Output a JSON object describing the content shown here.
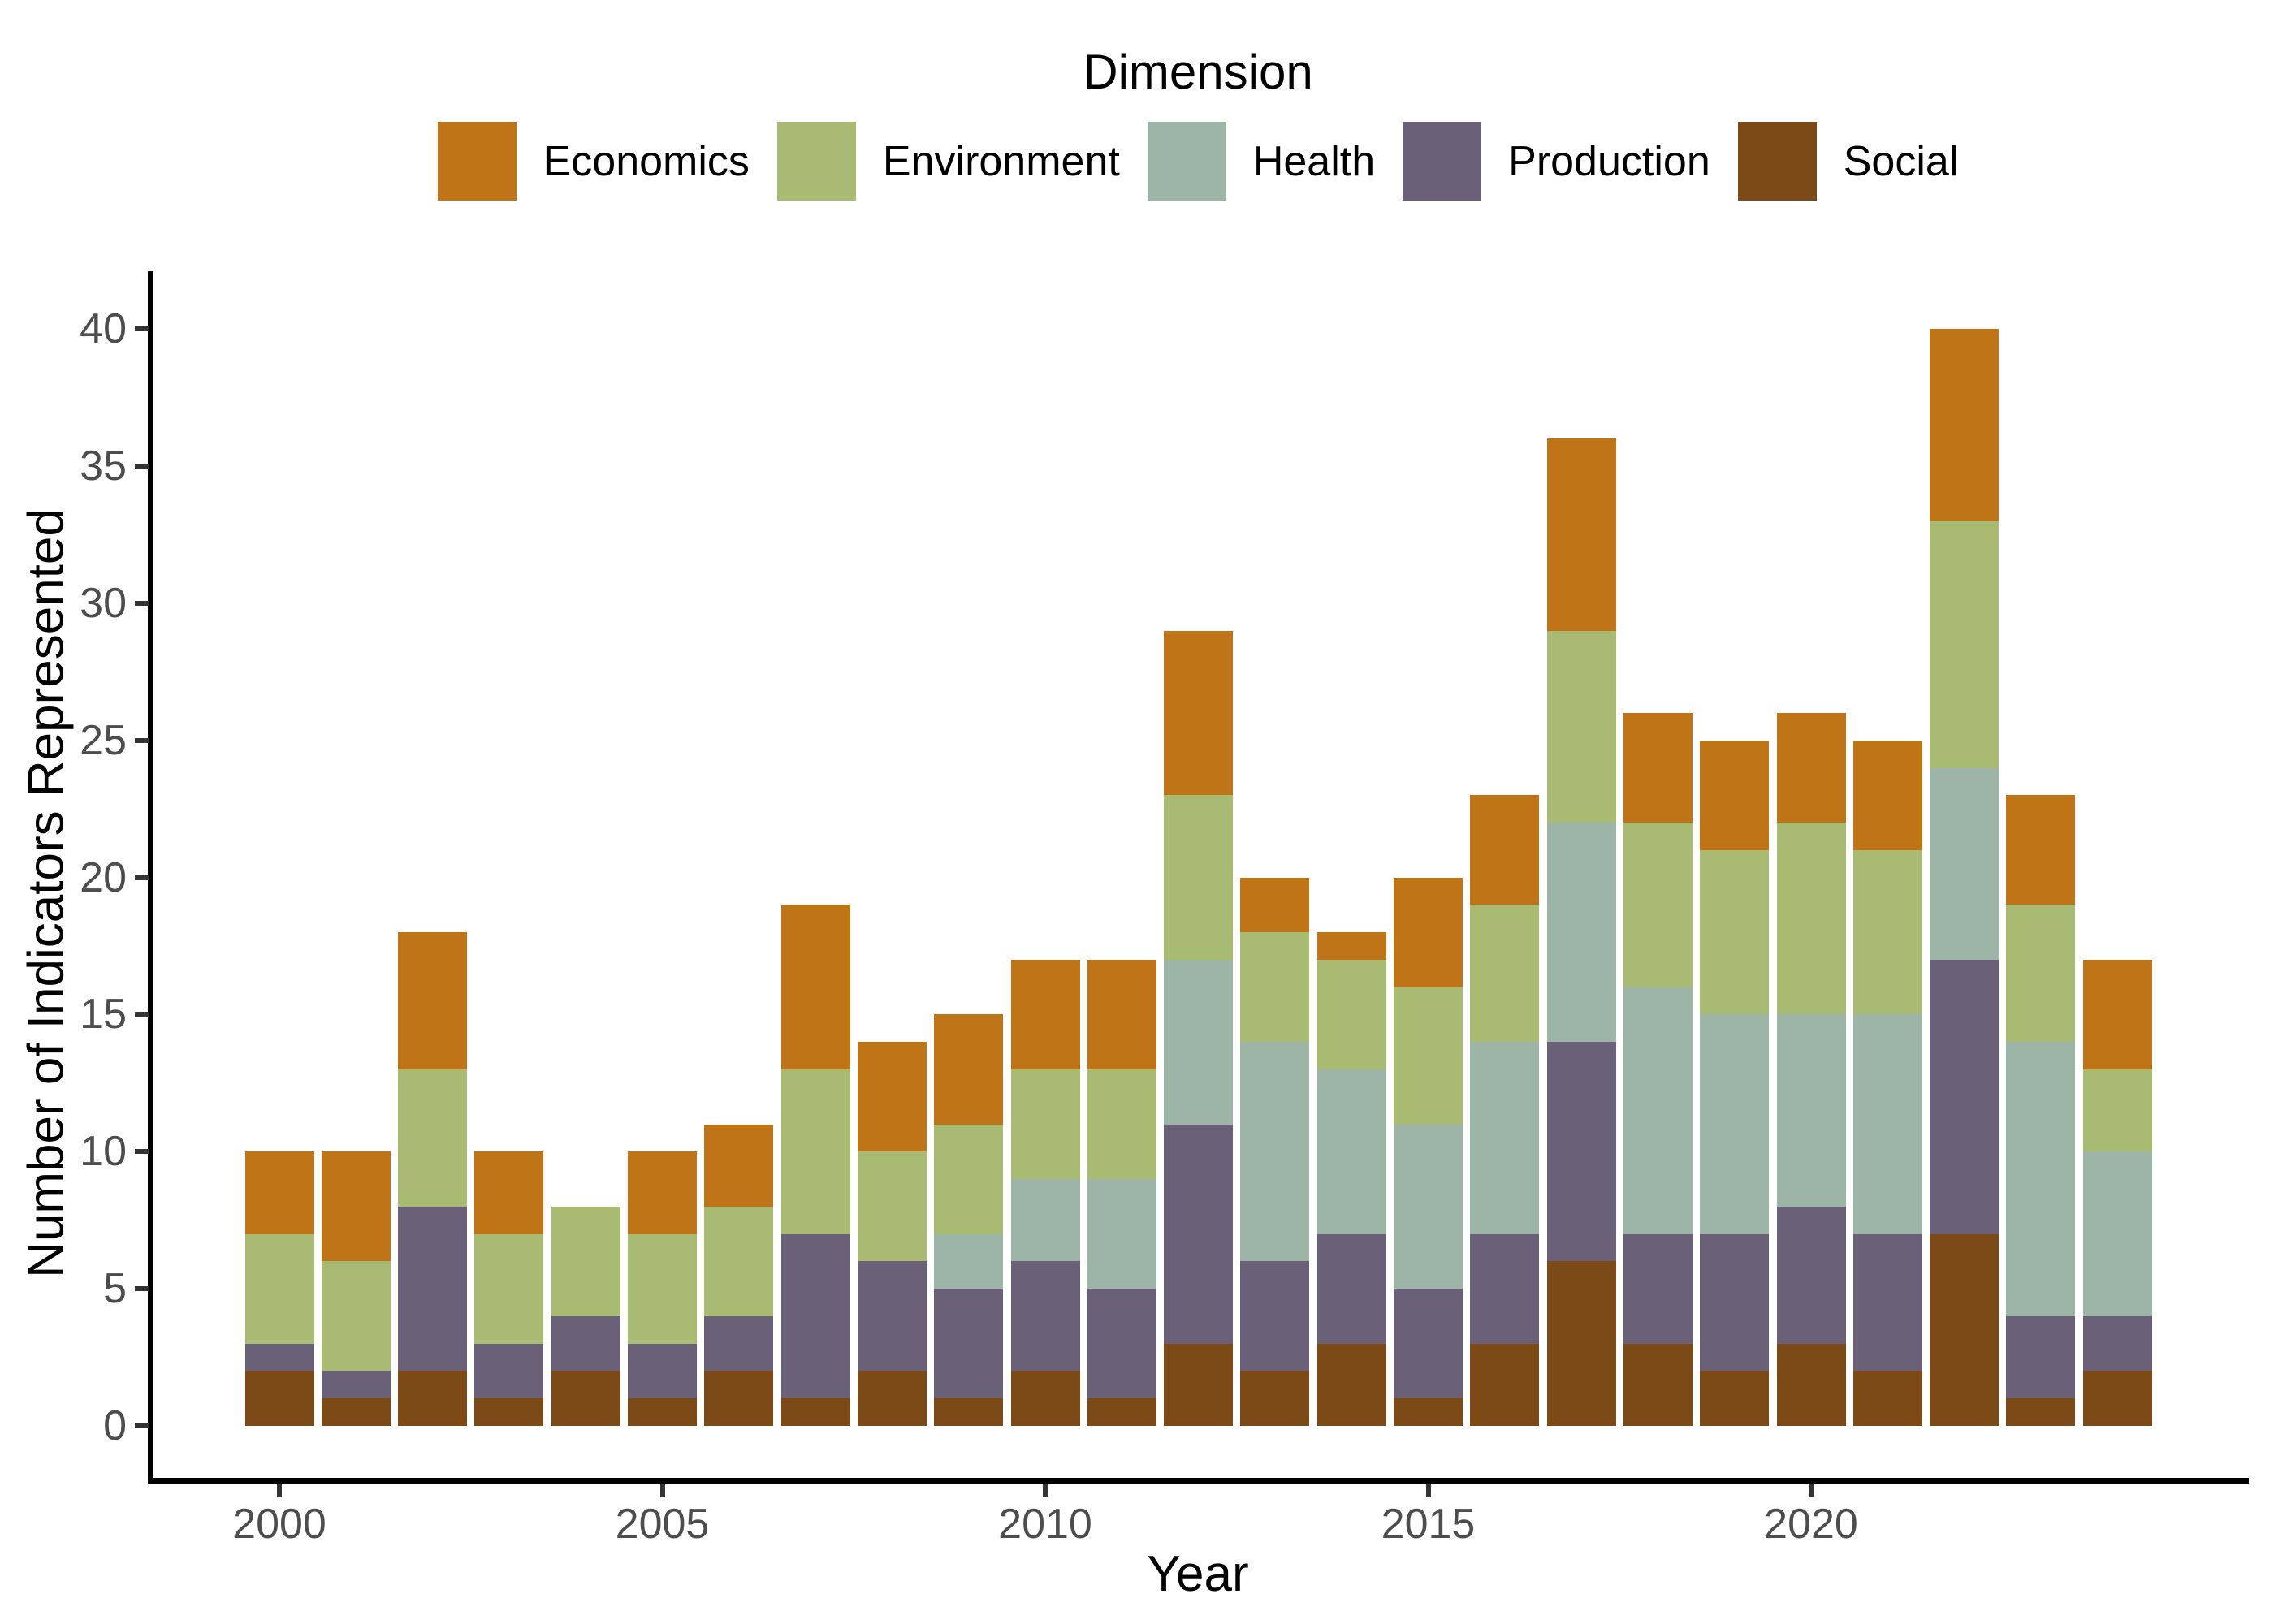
{
  "figure": {
    "legend_title": "Dimension",
    "x_axis_title": "Year",
    "y_axis_title": "Number of Indicators Represented"
  },
  "legend": {
    "position": "top",
    "items": [
      {
        "label": "Economics",
        "color": "#BF7418"
      },
      {
        "label": "Environment",
        "color": "#A9BB72"
      },
      {
        "label": "Health",
        "color": "#9CB5A6"
      },
      {
        "label": "Production",
        "color": "#6A6078"
      },
      {
        "label": "Social",
        "color": "#7C4A16"
      }
    ]
  },
  "chart_data": {
    "type": "bar",
    "stacked": true,
    "title": "Dimension",
    "xlabel": "Year",
    "ylabel": "Number of Indicators Represented",
    "categories": [
      2000,
      2001,
      2002,
      2003,
      2004,
      2005,
      2006,
      2007,
      2008,
      2009,
      2010,
      2011,
      2012,
      2013,
      2014,
      2015,
      2016,
      2017,
      2018,
      2019,
      2020,
      2021,
      2022,
      2023,
      2024
    ],
    "stack_order_bottom_to_top": [
      "Social",
      "Production",
      "Health",
      "Environment",
      "Economics"
    ],
    "series": [
      {
        "name": "Social",
        "color": "#7C4A16",
        "values": [
          2,
          1,
          2,
          1,
          2,
          1,
          2,
          1,
          2,
          1,
          2,
          1,
          3,
          2,
          3,
          1,
          3,
          6,
          3,
          2,
          3,
          2,
          7,
          1,
          2
        ]
      },
      {
        "name": "Production",
        "color": "#6A6078",
        "values": [
          1,
          1,
          6,
          2,
          2,
          2,
          2,
          6,
          4,
          4,
          4,
          4,
          8,
          4,
          4,
          4,
          4,
          8,
          4,
          5,
          5,
          5,
          10,
          3,
          2
        ]
      },
      {
        "name": "Health",
        "color": "#9CB5A6",
        "values": [
          0,
          0,
          0,
          0,
          0,
          0,
          0,
          0,
          0,
          2,
          3,
          4,
          6,
          8,
          6,
          6,
          7,
          8,
          9,
          8,
          7,
          8,
          7,
          10,
          6
        ]
      },
      {
        "name": "Environment",
        "color": "#A9BB72",
        "values": [
          4,
          4,
          5,
          4,
          4,
          4,
          4,
          6,
          4,
          4,
          4,
          4,
          6,
          4,
          4,
          5,
          5,
          7,
          6,
          6,
          7,
          6,
          9,
          5,
          3
        ]
      },
      {
        "name": "Economics",
        "color": "#BF7418",
        "values": [
          3,
          4,
          5,
          3,
          0,
          3,
          3,
          6,
          4,
          4,
          4,
          4,
          6,
          2,
          1,
          4,
          4,
          7,
          4,
          4,
          4,
          4,
          7,
          4,
          4
        ]
      }
    ],
    "totals": [
      10,
      10,
      18,
      10,
      8,
      10,
      11,
      19,
      14,
      15,
      17,
      17,
      29,
      20,
      18,
      20,
      23,
      36,
      26,
      25,
      26,
      25,
      40,
      23,
      17
    ],
    "ylim": [
      0,
      40
    ],
    "y_ticks": [
      0,
      5,
      10,
      15,
      20,
      25,
      30,
      35,
      40
    ],
    "x_ticks": [
      2000,
      2005,
      2010,
      2015,
      2020
    ],
    "grid": false,
    "legend_position": "top"
  },
  "colors": {
    "background": "#FFFFFF",
    "axis_line": "#000000",
    "tick_mark": "#333333",
    "tick_text": "#4D4D4D",
    "title_text": "#000000"
  }
}
